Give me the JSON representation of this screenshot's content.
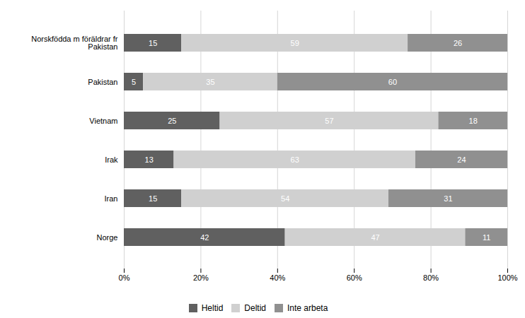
{
  "chart_data": {
    "type": "bar",
    "orientation": "horizontal",
    "stacked": true,
    "data_labels": true,
    "categories": [
      "Norskfödda m föräldrar fr\nPakistan",
      "Pakistan",
      "Vietnam",
      "Irak",
      "Iran",
      "Norge"
    ],
    "series": [
      {
        "name": "Heltid",
        "color": "#606060",
        "values": [
          15,
          5,
          25,
          13,
          15,
          42
        ]
      },
      {
        "name": "Deltid",
        "color": "#d0d0d0",
        "values": [
          59,
          35,
          57,
          63,
          54,
          47
        ]
      },
      {
        "name": "Inte arbeta",
        "color": "#909090",
        "values": [
          26,
          60,
          18,
          24,
          31,
          11
        ]
      }
    ],
    "xlim": [
      0,
      100
    ],
    "xticks": [
      {
        "value": 0,
        "label": "0%"
      },
      {
        "value": 20,
        "label": "20%"
      },
      {
        "value": 40,
        "label": "40%"
      },
      {
        "value": 60,
        "label": "60%"
      },
      {
        "value": 80,
        "label": "80%"
      },
      {
        "value": 100,
        "label": "100%"
      }
    ],
    "grid": true,
    "legend": "bottom"
  }
}
